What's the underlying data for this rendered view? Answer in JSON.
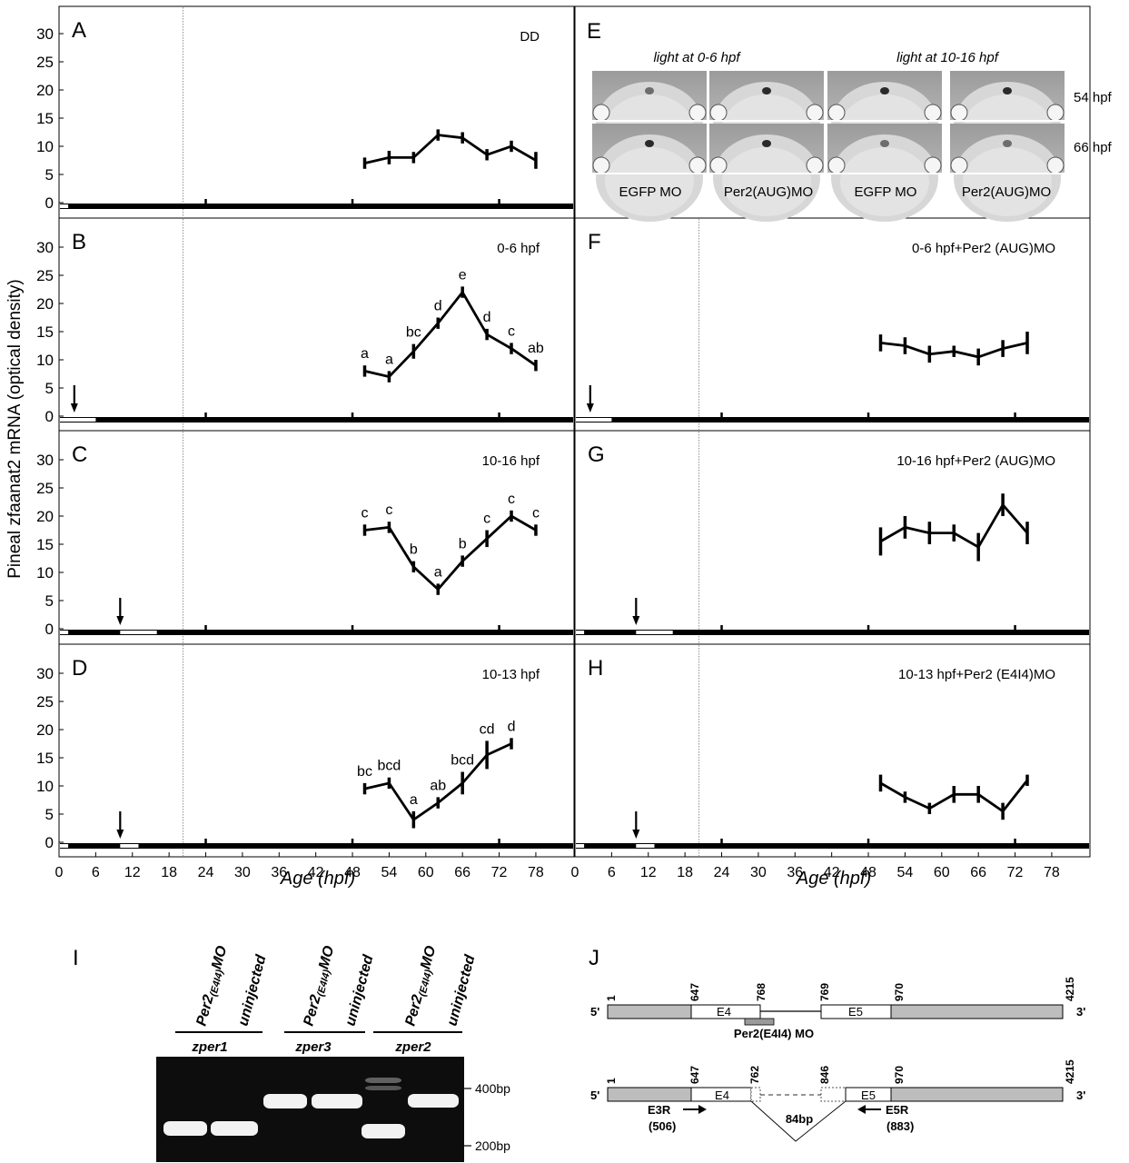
{
  "yaxis_label": "Pineal zfaanat2 mRNA (optical density)",
  "xaxis_label": "Age (hpf)",
  "x_ticks": [
    "0",
    "6",
    "12",
    "18",
    "24",
    "30",
    "36",
    "42",
    "48",
    "54",
    "60",
    "66",
    "72",
    "78"
  ],
  "y_ticks": [
    "0",
    "5",
    "10",
    "15",
    "20",
    "25",
    "30"
  ],
  "panel_E": {
    "letter": "E",
    "group_labels": [
      "light at 0-6 hpf",
      "light at 10-16 hpf"
    ],
    "row_labels": [
      "54 hpf",
      "66 hpf"
    ],
    "col_labels": [
      "EGFP MO",
      "Per2(AUG)MO",
      "EGFP MO",
      "Per2(AUG)MO"
    ]
  },
  "chart_data": [
    {
      "panel": "A",
      "type": "line",
      "title": "DD",
      "xlabel": "",
      "ylabel": "",
      "ylim": [
        -3,
        35
      ],
      "xlim": [
        0,
        84
      ],
      "light": [
        [
          0,
          1.5
        ]
      ],
      "arrow": null,
      "x": [
        50,
        54,
        58,
        62,
        66,
        70,
        74,
        78
      ],
      "values": [
        7,
        8,
        8,
        12,
        11.5,
        8.5,
        10,
        7.5
      ],
      "err": [
        1,
        1.2,
        1,
        1,
        1,
        1,
        1,
        1.5
      ],
      "letters": []
    },
    {
      "panel": "B",
      "type": "line",
      "title": "0-6 hpf",
      "xlabel": "",
      "ylabel": "",
      "ylim": [
        -3,
        35
      ],
      "xlim": [
        0,
        84
      ],
      "light": [
        [
          0,
          6
        ]
      ],
      "arrow": 2.5,
      "x": [
        50,
        54,
        58,
        62,
        66,
        70,
        74,
        78
      ],
      "values": [
        8,
        7,
        11.5,
        16.5,
        22,
        14.5,
        12,
        9
      ],
      "err": [
        1,
        1,
        1.3,
        1,
        1,
        1,
        1,
        1
      ],
      "letters": [
        "a",
        "a",
        "bc",
        "d",
        "e",
        "d",
        "c",
        "ab"
      ]
    },
    {
      "panel": "C",
      "type": "line",
      "title": "10-16 hpf",
      "xlabel": "",
      "ylabel": "",
      "ylim": [
        -3,
        35
      ],
      "xlim": [
        0,
        84
      ],
      "light": [
        [
          0,
          1.5
        ],
        [
          10,
          16
        ]
      ],
      "arrow": 10,
      "x": [
        50,
        54,
        58,
        62,
        66,
        70,
        74,
        78
      ],
      "values": [
        17.5,
        18,
        11,
        7,
        12,
        16,
        20,
        17.5
      ],
      "err": [
        1,
        1,
        1,
        1,
        1,
        1.5,
        1,
        1
      ],
      "letters": [
        "c",
        "c",
        "b",
        "a",
        "b",
        "c",
        "c",
        "c"
      ]
    },
    {
      "panel": "D",
      "type": "line",
      "title": "10-13 hpf",
      "xlabel": "",
      "ylabel": "",
      "ylim": [
        -3,
        35
      ],
      "xlim": [
        0,
        84
      ],
      "light": [
        [
          0,
          1.5
        ],
        [
          10,
          13
        ]
      ],
      "arrow": 10,
      "x": [
        50,
        54,
        58,
        62,
        66,
        70,
        74
      ],
      "values": [
        9.5,
        10.5,
        4,
        7,
        10.5,
        15.5,
        17.5
      ],
      "err": [
        1,
        1,
        1.5,
        1,
        2,
        2.5,
        1
      ],
      "letters": [
        "bc",
        "bcd",
        "a",
        "ab",
        "bcd",
        "cd",
        "d"
      ]
    },
    {
      "panel": "F",
      "type": "line",
      "title": "0-6 hpf+Per2 (AUG)MO",
      "xlabel": "",
      "ylabel": "",
      "ylim": [
        -3,
        35
      ],
      "xlim": [
        0,
        84
      ],
      "light": [
        [
          0,
          6
        ]
      ],
      "arrow": 2.5,
      "x": [
        50,
        54,
        58,
        62,
        66,
        70,
        74
      ],
      "values": [
        13,
        12.5,
        11,
        11.5,
        10.5,
        12,
        13
      ],
      "err": [
        1.5,
        1.5,
        1.5,
        1,
        1.5,
        1.5,
        2
      ],
      "letters": []
    },
    {
      "panel": "G",
      "type": "line",
      "title": "10-16 hpf+Per2 (AUG)MO",
      "xlabel": "",
      "ylabel": "",
      "ylim": [
        -3,
        35
      ],
      "xlim": [
        0,
        84
      ],
      "light": [
        [
          0,
          1.5
        ],
        [
          10,
          16
        ]
      ],
      "arrow": 10,
      "x": [
        50,
        54,
        58,
        62,
        66,
        70,
        74
      ],
      "values": [
        15.5,
        18,
        17,
        17,
        14.5,
        22,
        17
      ],
      "err": [
        2.5,
        2,
        2,
        1.5,
        2.5,
        2,
        2
      ],
      "letters": []
    },
    {
      "panel": "H",
      "type": "line",
      "title": "10-13 hpf+Per2 (E4I4)MO",
      "xlabel": "",
      "ylabel": "",
      "ylim": [
        -3,
        35
      ],
      "xlim": [
        0,
        84
      ],
      "light": [
        [
          0,
          1.5
        ],
        [
          10,
          13
        ]
      ],
      "arrow": 10,
      "x": [
        50,
        54,
        58,
        62,
        66,
        70,
        74
      ],
      "values": [
        10.5,
        8,
        6,
        8.5,
        8.5,
        5.5,
        11
      ],
      "err": [
        1.5,
        1,
        1,
        1.5,
        1.5,
        1.5,
        1
      ],
      "letters": []
    }
  ],
  "panel_I": {
    "letter": "I",
    "lanes": [
      "Per2(E4I4)MO",
      "uninjected",
      "Per2(E4I4)MO",
      "uninjected",
      "Per2(E4I4)MO",
      "uninjected"
    ],
    "genes": [
      "zper1",
      "zper3",
      "zper2"
    ],
    "markers": [
      "400bp",
      "200bp"
    ]
  },
  "panel_J": {
    "letter": "J",
    "five_prime": "5'",
    "three_prime": "3'",
    "top": {
      "exons": [
        "E4",
        "E5"
      ],
      "positions": [
        "1",
        "647",
        "768",
        "769",
        "970",
        "4215"
      ],
      "mo_label": "Per2(E4I4) MO"
    },
    "bottom": {
      "exons": [
        "E4",
        "E5"
      ],
      "positions": [
        "1",
        "647",
        "762",
        "846",
        "970",
        "4215"
      ],
      "gap": "84bp",
      "primers": [
        {
          "name": "E3R",
          "pos": "(506)"
        },
        {
          "name": "E5R",
          "pos": "(883)"
        }
      ]
    }
  }
}
